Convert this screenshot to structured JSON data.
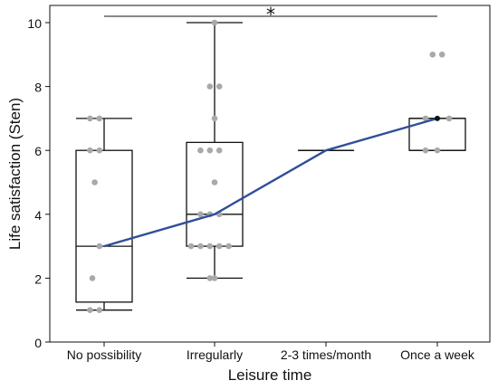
{
  "chart_data": {
    "type": "box",
    "xlabel": "Leisure time",
    "ylabel": "Life satisfaction (Sten)",
    "ylim": [
      0,
      10.5
    ],
    "yticks": [
      0,
      2,
      4,
      6,
      8,
      10
    ],
    "categories": [
      "No possibility",
      "Irregularly",
      "2-3 times/month",
      "Once a week"
    ],
    "boxes": [
      {
        "q1": 1.25,
        "median": 3,
        "q3": 6,
        "whisker_low": 1,
        "whisker_high": 7
      },
      {
        "q1": 3,
        "median": 4,
        "q3": 6.25,
        "whisker_low": 2,
        "whisker_high": 10
      },
      {
        "q1": 6,
        "median": 6,
        "q3": 6,
        "whisker_low": 6,
        "whisker_high": 6
      },
      {
        "q1": 6,
        "median": 7,
        "q3": 7,
        "whisker_low": 6,
        "whisker_high": 7
      }
    ],
    "points": [
      {
        "x": 0,
        "y": 7,
        "dx": -0.06
      },
      {
        "x": 0,
        "y": 7,
        "dx": -0.02
      },
      {
        "x": 0,
        "y": 6,
        "dx": -0.06
      },
      {
        "x": 0,
        "y": 6,
        "dx": -0.02
      },
      {
        "x": 0,
        "y": 5,
        "dx": -0.04
      },
      {
        "x": 0,
        "y": 3,
        "dx": -0.02
      },
      {
        "x": 0,
        "y": 2,
        "dx": -0.05
      },
      {
        "x": 0,
        "y": 1,
        "dx": -0.06
      },
      {
        "x": 0,
        "y": 1,
        "dx": -0.02
      },
      {
        "x": 1,
        "y": 10,
        "dx": 0.0
      },
      {
        "x": 1,
        "y": 8,
        "dx": -0.02
      },
      {
        "x": 1,
        "y": 8,
        "dx": 0.02
      },
      {
        "x": 1,
        "y": 7,
        "dx": 0.0
      },
      {
        "x": 1,
        "y": 6,
        "dx": -0.06
      },
      {
        "x": 1,
        "y": 6,
        "dx": -0.02
      },
      {
        "x": 1,
        "y": 6,
        "dx": 0.02
      },
      {
        "x": 1,
        "y": 5,
        "dx": 0.0
      },
      {
        "x": 1,
        "y": 4,
        "dx": -0.06
      },
      {
        "x": 1,
        "y": 4,
        "dx": -0.02
      },
      {
        "x": 1,
        "y": 4,
        "dx": 0.02
      },
      {
        "x": 1,
        "y": 3,
        "dx": -0.1
      },
      {
        "x": 1,
        "y": 3,
        "dx": -0.06
      },
      {
        "x": 1,
        "y": 3,
        "dx": -0.02
      },
      {
        "x": 1,
        "y": 3,
        "dx": 0.02
      },
      {
        "x": 1,
        "y": 3,
        "dx": 0.06
      },
      {
        "x": 1,
        "y": 2,
        "dx": -0.02
      },
      {
        "x": 1,
        "y": 2,
        "dx": 0.0
      },
      {
        "x": 3,
        "y": 9,
        "dx": -0.02
      },
      {
        "x": 3,
        "y": 9,
        "dx": 0.02
      },
      {
        "x": 3,
        "y": 7,
        "dx": -0.05
      },
      {
        "x": 3,
        "y": 7,
        "dx": 0.05
      },
      {
        "x": 3,
        "y": 6,
        "dx": -0.05
      },
      {
        "x": 3,
        "y": 6,
        "dx": 0.0
      }
    ],
    "mean_line": {
      "values": [
        3,
        4,
        6,
        7
      ],
      "color": "#2f4f9a"
    },
    "significance": {
      "from": 0,
      "to": 3,
      "y": 10.2,
      "label": "*"
    },
    "colors": {
      "points": "#a9a9a9",
      "box": "#111111",
      "mean_end_point": "#111111"
    }
  }
}
